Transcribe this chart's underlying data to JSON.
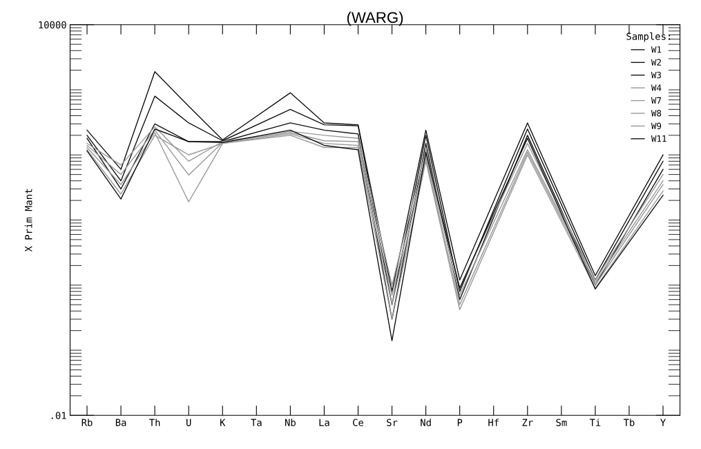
{
  "chart_data": {
    "type": "line",
    "title": "(WARG)",
    "ylabel": "X Prim Mant",
    "legend_title": "Samples:",
    "legend": "top right",
    "grid": false,
    "log": true,
    "marker": "none",
    "line_style": "solid",
    "categories": [
      "Rb",
      "Ba",
      "Th",
      "U",
      "K",
      "Ta",
      "Nb",
      "La",
      "Ce",
      "Sr",
      "Nd",
      "P",
      "Hf",
      "Zr",
      "Sm",
      "Ti",
      "Tb",
      "Y"
    ],
    "ylim": [
      0.01,
      10000
    ],
    "yticks": [
      {
        "value": 0.01,
        "label": ".01"
      },
      {
        "value": 10000,
        "label": "10000"
      }
    ],
    "series": [
      {
        "name": "W1",
        "color": "#111111",
        "values": [
          240,
          60,
          1900,
          560,
          170,
          null,
          900,
          310,
          290,
          0.8,
          240,
          1.2,
          null,
          310,
          null,
          1.4,
          null,
          100
        ]
      },
      {
        "name": "W2",
        "color": "#111111",
        "values": [
          200,
          40,
          800,
          310,
          165,
          null,
          500,
          290,
          280,
          0.5,
          200,
          0.8,
          null,
          250,
          null,
          1.2,
          null,
          80
        ]
      },
      {
        "name": "W3",
        "color": "#111111",
        "values": [
          180,
          30,
          300,
          160,
          160,
          null,
          310,
          240,
          210,
          0.3,
          150,
          0.6,
          null,
          200,
          null,
          1.0,
          null,
          60
        ]
      },
      {
        "name": "W4",
        "color": "#999999",
        "values": [
          150,
          70,
          270,
          80,
          160,
          null,
          230,
          200,
          180,
          1.0,
          120,
          0.9,
          null,
          150,
          null,
          1.2,
          null,
          50
        ]
      },
      {
        "name": "W7",
        "color": "#999999",
        "values": [
          140,
          50,
          240,
          49,
          155,
          null,
          220,
          165,
          160,
          0.7,
          100,
          0.7,
          null,
          120,
          null,
          1.1,
          null,
          40
        ]
      },
      {
        "name": "W8",
        "color": "#999999",
        "values": [
          130,
          35,
          220,
          19,
          150,
          null,
          210,
          150,
          140,
          0.5,
          90,
          0.5,
          null,
          110,
          null,
          1.0,
          null,
          35
        ]
      },
      {
        "name": "W9",
        "color": "#999999",
        "values": [
          120,
          25,
          200,
          100,
          150,
          null,
          200,
          130,
          130,
          0.3,
          80,
          0.42,
          null,
          100,
          null,
          0.9,
          null,
          28
        ]
      },
      {
        "name": "W11",
        "color": "#111111",
        "values": [
          115,
          21,
          250,
          160,
          155,
          null,
          240,
          140,
          120,
          0.14,
          110,
          0.9,
          null,
          180,
          null,
          0.87,
          null,
          24
        ]
      }
    ]
  }
}
